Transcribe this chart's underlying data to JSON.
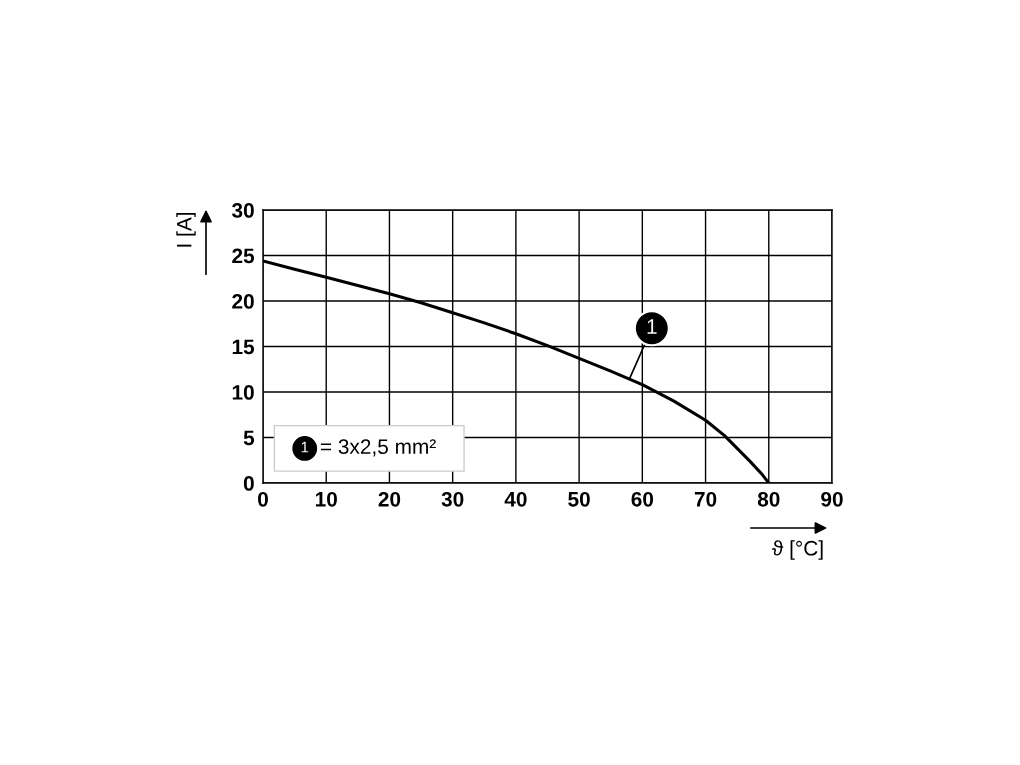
{
  "chart_data": {
    "type": "line",
    "xlabel": "ϑ [°C]",
    "ylabel": "I [A]",
    "x": [
      0,
      5,
      10,
      15,
      20,
      25,
      30,
      35,
      40,
      45,
      50,
      55,
      60,
      65,
      70,
      73,
      75,
      77,
      79,
      80
    ],
    "series": [
      {
        "color": "#000000",
        "values": [
          24.4,
          23.5,
          22.6,
          21.7,
          20.8,
          19.8,
          18.7,
          17.6,
          16.4,
          15.1,
          13.7,
          12.3,
          10.8,
          9.0,
          6.9,
          5.2,
          3.8,
          2.4,
          0.9,
          0
        ]
      }
    ],
    "xlim": [
      0,
      90
    ],
    "xticks": [
      0,
      10,
      20,
      30,
      40,
      50,
      60,
      70,
      80,
      90
    ],
    "ylim": [
      0,
      30
    ],
    "yticks": [
      0,
      5,
      10,
      15,
      20,
      25,
      30
    ],
    "grid": true,
    "marker": "none",
    "line_style": "solid",
    "annotations": [
      {
        "text": "1",
        "x": 58,
        "y": 11.5
      },
      "1",
      "= 3x2,5 mm²"
    ]
  }
}
